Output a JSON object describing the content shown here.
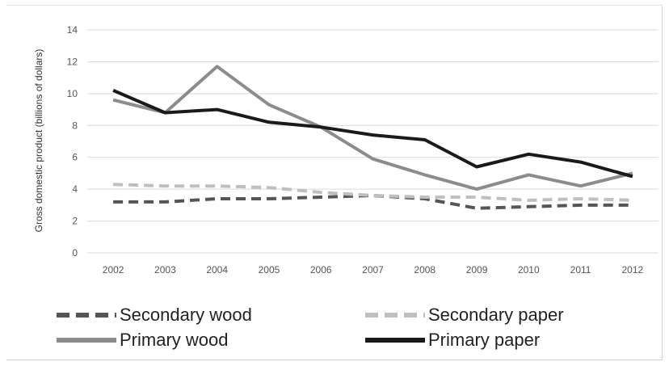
{
  "chart_data": {
    "type": "line",
    "title": "",
    "xlabel": "",
    "ylabel": "Gross domestic product (billions of dollars)",
    "ylim": [
      0,
      14
    ],
    "yticks": [
      "0",
      "2",
      "4",
      "6",
      "8",
      "10",
      "12",
      "14"
    ],
    "categories": [
      "2002",
      "2003",
      "2004",
      "2005",
      "2006",
      "2007",
      "2008",
      "2009",
      "2010",
      "2011",
      "2012"
    ],
    "grid": true,
    "legend_position": "bottom",
    "series": [
      {
        "name": "Secondary wood",
        "color": "#555555",
        "dash": "dashed",
        "values": [
          3.2,
          3.2,
          3.4,
          3.4,
          3.5,
          3.6,
          3.4,
          2.8,
          2.9,
          3.0,
          3.0
        ]
      },
      {
        "name": "Secondary paper",
        "color": "#bfbfbf",
        "dash": "dashed",
        "values": [
          4.3,
          4.2,
          4.2,
          4.1,
          3.8,
          3.6,
          3.5,
          3.5,
          3.3,
          3.4,
          3.3
        ]
      },
      {
        "name": "Primary wood",
        "color": "#8c8c8c",
        "dash": "solid",
        "values": [
          9.6,
          8.8,
          11.7,
          9.3,
          7.9,
          5.9,
          4.9,
          4.0,
          4.9,
          4.2,
          5.0
        ]
      },
      {
        "name": "Primary paper",
        "color": "#1a1a1a",
        "dash": "solid",
        "values": [
          10.2,
          8.8,
          9.0,
          8.2,
          7.9,
          7.4,
          7.1,
          5.4,
          6.2,
          5.7,
          4.8
        ]
      }
    ]
  }
}
